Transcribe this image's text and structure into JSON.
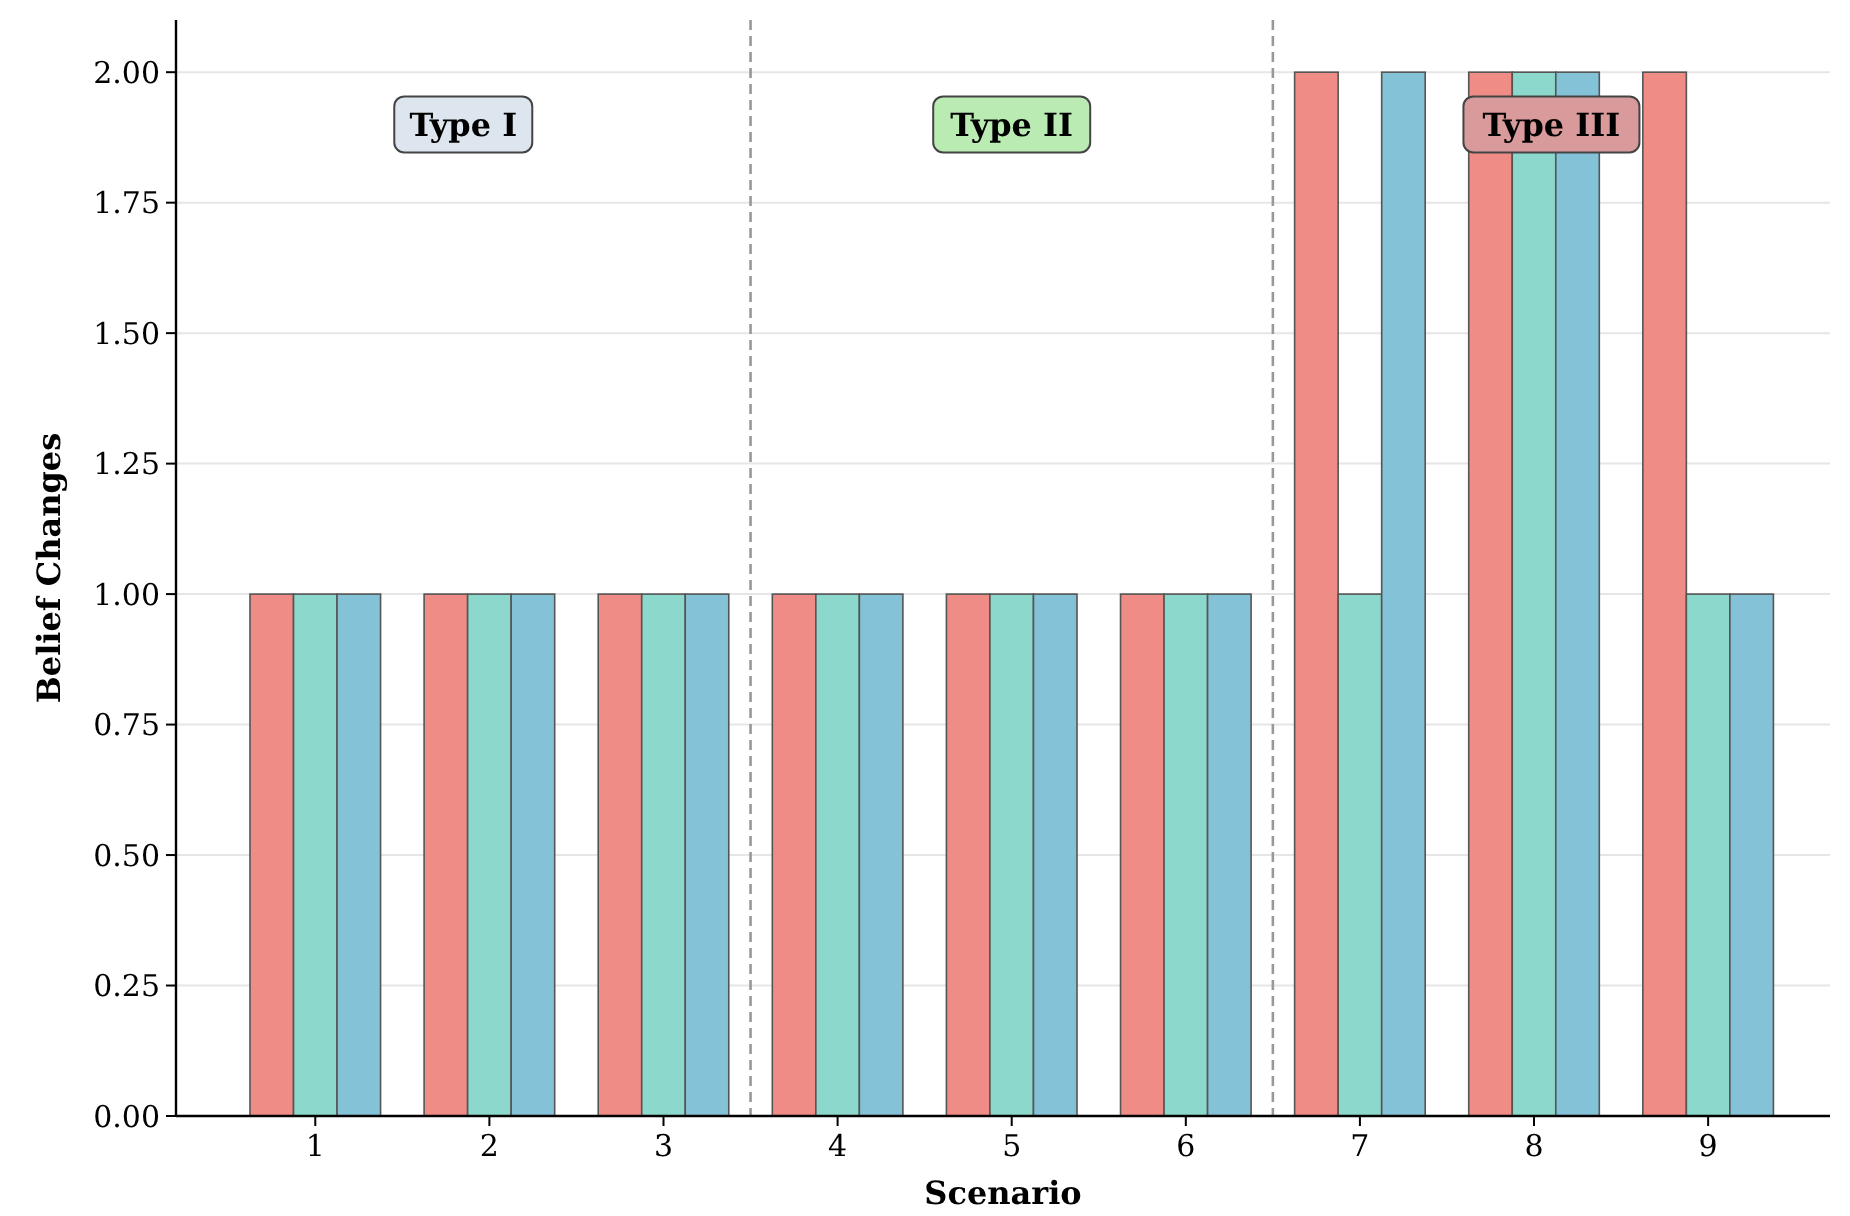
{
  "chart_data": {
    "type": "bar",
    "xlabel": "Scenario",
    "ylabel": "Belief Changes",
    "x": [
      1,
      2,
      3,
      4,
      5,
      6,
      7,
      8,
      9
    ],
    "xlim": [
      0.2,
      9.7
    ],
    "xticks": [
      1,
      2,
      3,
      4,
      5,
      6,
      7,
      8,
      9
    ],
    "ylim": [
      0,
      2.1
    ],
    "yticks": [
      {
        "value": 0,
        "label": "0.00"
      },
      {
        "value": 0.25,
        "label": "0.25"
      },
      {
        "value": 0.5,
        "label": "0.50"
      },
      {
        "value": 0.75,
        "label": "0.75"
      },
      {
        "value": 1,
        "label": "1.00"
      },
      {
        "value": 1.25,
        "label": "1.25"
      },
      {
        "value": 1.5,
        "label": "1.50"
      },
      {
        "value": 1.75,
        "label": "1.75"
      },
      {
        "value": 2,
        "label": "2.00"
      }
    ],
    "grid": "y",
    "series": [
      {
        "color": "#f08c86",
        "values": [
          1,
          1,
          1,
          1,
          1,
          1,
          2,
          2,
          2
        ]
      },
      {
        "color": "#8dd8cc",
        "values": [
          1,
          1,
          1,
          1,
          1,
          1,
          1,
          2,
          1
        ]
      },
      {
        "color": "#84c2d8",
        "values": [
          1,
          1,
          1,
          1,
          1,
          1,
          2,
          2,
          1
        ]
      }
    ],
    "ref_lines": [
      {
        "axis": "x",
        "value": 3.5,
        "color": "#999999",
        "line_style": "dashed"
      },
      {
        "axis": "x",
        "value": 6.5,
        "color": "#999999",
        "line_style": "dashed"
      }
    ],
    "annotations": [
      "Type I",
      "Type II",
      "Type III"
    ]
  }
}
